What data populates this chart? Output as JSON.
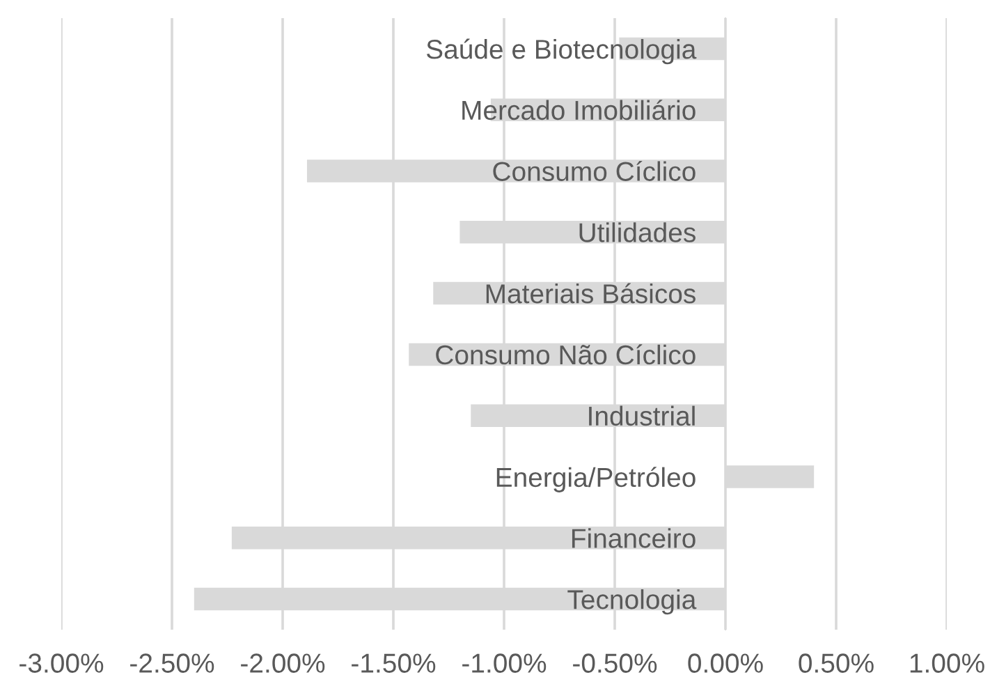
{
  "chart_data": {
    "type": "bar",
    "orientation": "horizontal",
    "categories": [
      "Saúde e Biotecnologia",
      "Mercado Imobiliário",
      "Consumo Cíclico",
      "Utilidades",
      "Materiais Básicos",
      "Consumo Não Cíclico",
      "Industrial",
      "Energia/Petróleo",
      "Financeiro",
      "Tecnologia"
    ],
    "values": [
      -0.48,
      -1.06,
      -1.89,
      -1.2,
      -1.32,
      -1.43,
      -1.15,
      0.4,
      -2.23,
      -2.4
    ],
    "color": "#d9d9d9",
    "xlim": [
      -3,
      1
    ],
    "xticks": [
      {
        "value": -3,
        "label": "-3.00%"
      },
      {
        "value": -2.5,
        "label": "-2.50%"
      },
      {
        "value": -2,
        "label": "-2.00%"
      },
      {
        "value": -1.5,
        "label": "-1.50%"
      },
      {
        "value": -1,
        "label": "-1.00%"
      },
      {
        "value": -0.5,
        "label": "-0.50%"
      },
      {
        "value": 0,
        "label": "0.00%"
      },
      {
        "value": 0.5,
        "label": "0.50%"
      },
      {
        "value": 1,
        "label": "1.00%"
      }
    ],
    "grid": "x"
  }
}
